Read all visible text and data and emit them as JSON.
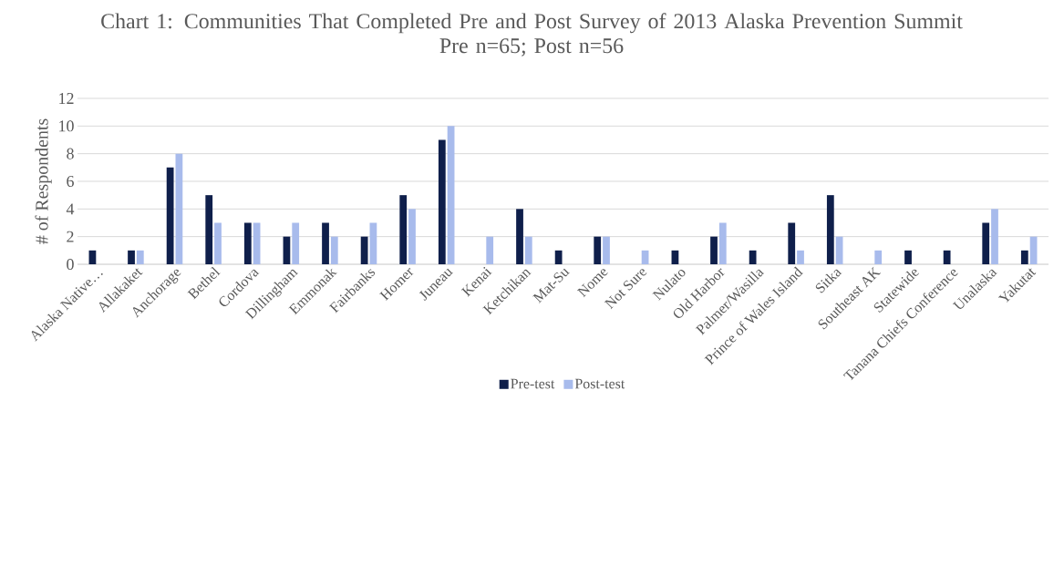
{
  "chart_data": {
    "type": "bar",
    "title": "Chart 1: Communities That Completed Pre and Post Survey of 2013 Alaska Prevention Summit",
    "subtitle": "Pre n=65; Post n=56",
    "ylabel": "# of Respondents",
    "categories": [
      "Alaska Native…",
      "Allakaket",
      "Anchorage",
      "Bethel",
      "Cordova",
      "Dillingham",
      "Emmonak",
      "Fairbanks",
      "Homer",
      "Juneau",
      "Kenai",
      "Ketchikan",
      "Mat-Su",
      "Nome",
      "Not Sure",
      "Nulato",
      "Old Harbor",
      "Palmer/Wasilla",
      "Prince of Wales Island",
      "Sitka",
      "Southeast AK",
      "Statewide",
      "Tanana Chiefs Conference",
      "Unalaska",
      "Yakutat"
    ],
    "series": [
      {
        "name": "Pre-test",
        "color": "#0f1f4b",
        "values": [
          1,
          1,
          7,
          5,
          3,
          2,
          3,
          2,
          5,
          9,
          null,
          4,
          1,
          2,
          null,
          1,
          2,
          1,
          3,
          5,
          null,
          1,
          1,
          3,
          1
        ]
      },
      {
        "name": "Post-test",
        "color": "#a8bbec",
        "values": [
          null,
          1,
          8,
          3,
          3,
          3,
          2,
          3,
          4,
          10,
          2,
          2,
          null,
          2,
          1,
          null,
          3,
          null,
          1,
          2,
          1,
          null,
          null,
          4,
          2
        ]
      }
    ],
    "ylim": [
      0,
      12
    ],
    "yticks": [
      0,
      2,
      4,
      6,
      8,
      10,
      12
    ],
    "grid": "y",
    "legend": "bottom"
  }
}
